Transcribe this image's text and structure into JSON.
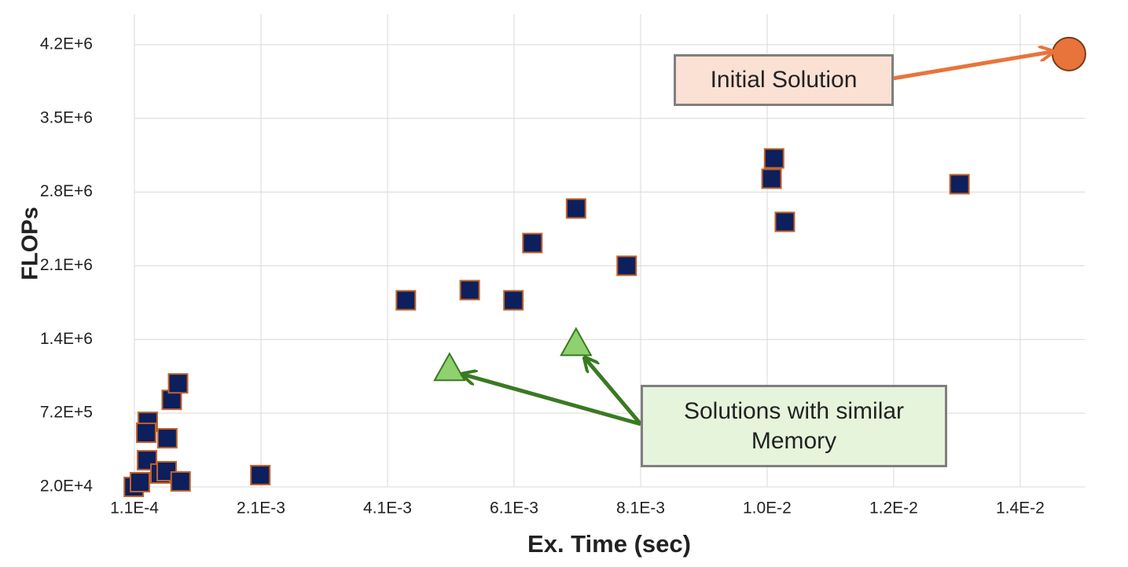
{
  "chart_data": {
    "type": "scatter",
    "xlabel": "Ex. Time (sec)",
    "ylabel": "FLOPs",
    "xlim": [
      0.00011,
      0.01513
    ],
    "ylim": [
      20000,
      4510000
    ],
    "xticks": [
      {
        "value": 0.00011,
        "label": "1.1E-4"
      },
      {
        "value": 0.00211,
        "label": "2.1E-3"
      },
      {
        "value": 0.00411,
        "label": "4.1E-3"
      },
      {
        "value": 0.00611,
        "label": "6.1E-3"
      },
      {
        "value": 0.00811,
        "label": "8.1E-3"
      },
      {
        "value": 0.01011,
        "label": "1.0E-2"
      },
      {
        "value": 0.01211,
        "label": "1.2E-2"
      },
      {
        "value": 0.01411,
        "label": "1.4E-2"
      }
    ],
    "yticks": [
      {
        "value": 20000,
        "label": "2.0E+4"
      },
      {
        "value": 720000,
        "label": "7.2E+5"
      },
      {
        "value": 1420000,
        "label": "1.4E+6"
      },
      {
        "value": 2120000,
        "label": "2.1E+6"
      },
      {
        "value": 2820000,
        "label": "2.8E+6"
      },
      {
        "value": 3520000,
        "label": "3.5E+6"
      },
      {
        "value": 4220000,
        "label": "4.2E+6"
      }
    ],
    "grid": true,
    "series": [
      {
        "marker": "square",
        "color": "#0d1f5c",
        "edgecolor": "#c0622a",
        "x": [
          0.0001,
          0.000197,
          0.000321,
          0.000296,
          0.000309,
          0.00052,
          0.00062,
          0.00063,
          0.0007,
          0.0008,
          0.00084,
          0.0021,
          0.0044,
          0.00541,
          0.0061,
          0.0064,
          0.00709,
          0.00789,
          0.01018,
          0.01022,
          0.01039,
          0.01315
        ],
        "values": [
          20000,
          64700,
          638000,
          534000,
          273000,
          147000,
          169000,
          482000,
          847000,
          1003000,
          72000,
          132000,
          1792000,
          1889000,
          1792000,
          2336000,
          2664000,
          2120000,
          2947000,
          3140000,
          2537000,
          2895000
        ]
      },
      {
        "marker": "triangle",
        "color": "#8fd16f",
        "edgecolor": "#3a7a22",
        "x": [
          0.00509,
          0.00709
        ],
        "values": [
          1137000,
          1375000
        ]
      },
      {
        "marker": "circle",
        "color": "#e8743b",
        "edgecolor": "#7a3a16",
        "x": [
          0.01488
        ],
        "values": [
          4131000
        ]
      }
    ],
    "annotations": [
      "Initial Solution",
      "Solutions with similar Memory"
    ]
  }
}
